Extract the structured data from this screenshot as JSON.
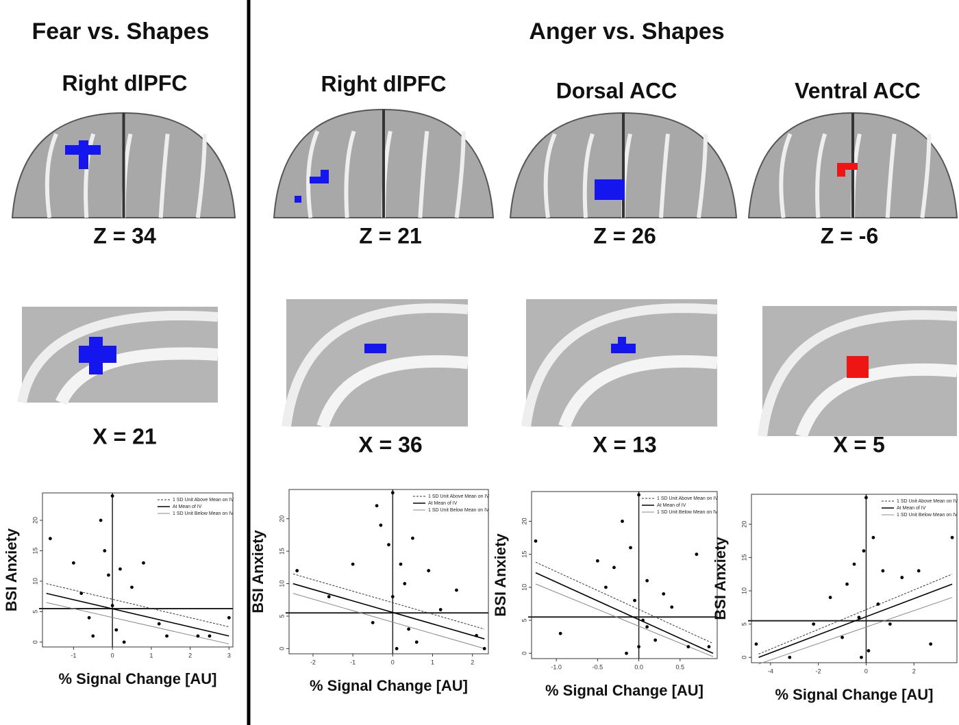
{
  "left_title": "Fear vs. Shapes",
  "right_title": "Anger vs. Shapes",
  "legend": [
    "1 SD Unit Above Mean on IV",
    "At Mean of IV",
    "1 SD Unit Below Mean on IV"
  ],
  "y_label": "BSI Anxiety",
  "x_label": "% Signal Change [AU]",
  "panels": [
    {
      "region": "Right dlPFC",
      "axial_label": "Z = 34",
      "sagittal_label": "X = 21",
      "blob_color": "#1515ee",
      "plot": {
        "xlim": [
          -1.8,
          3.1
        ],
        "ylim": [
          -0.8,
          24.5
        ],
        "xticks": [
          -1,
          0,
          1,
          2,
          3
        ],
        "yticks": [
          0,
          5,
          10,
          15,
          20
        ],
        "mean_y": 5.5,
        "mean_x": 0,
        "x": [
          -1.6,
          -1,
          -0.8,
          -0.6,
          -0.5,
          -0.3,
          -0.2,
          -0.1,
          0,
          0,
          0.1,
          0.2,
          0.3,
          0.5,
          0.8,
          1.2,
          1.4,
          2.2,
          2.5,
          3
        ],
        "y": [
          17,
          13,
          8,
          4,
          1,
          20,
          15,
          11,
          24,
          6,
          2,
          12,
          0,
          9,
          13,
          3,
          1,
          1,
          1,
          4
        ],
        "lines": [
          [
            -1.7,
            9.6,
            3,
            2.5
          ],
          [
            -1.7,
            8,
            3,
            1
          ],
          [
            -1.7,
            6.5,
            3,
            -0.3
          ]
        ]
      }
    },
    {
      "region": "Right dlPFC",
      "axial_label": "Z = 21",
      "sagittal_label": "X = 36",
      "blob_color": "#1515ee",
      "plot": {
        "xlim": [
          -2.6,
          2.4
        ],
        "ylim": [
          -0.8,
          24.5
        ],
        "xticks": [
          -2,
          -1,
          0,
          1,
          2
        ],
        "yticks": [
          0,
          5,
          10,
          15,
          20
        ],
        "mean_y": 5.5,
        "mean_x": 0,
        "x": [
          -2.4,
          -1.6,
          -1,
          -0.5,
          -0.3,
          -0.1,
          0,
          0,
          0.1,
          0.2,
          0.3,
          0.4,
          0.5,
          0.6,
          0.9,
          1.2,
          1.6,
          2.1,
          2.3,
          -0.4
        ],
        "y": [
          12,
          8,
          13,
          4,
          19,
          16,
          24,
          8,
          0,
          13,
          10,
          3,
          17,
          1,
          12,
          6,
          9,
          2,
          0,
          22
        ],
        "lines": [
          [
            -2.5,
            11.5,
            2.3,
            3
          ],
          [
            -2.5,
            10,
            2.3,
            1.5
          ],
          [
            -2.5,
            8.5,
            2.3,
            0
          ]
        ]
      }
    },
    {
      "region": "Dorsal ACC",
      "axial_label": "Z = 26",
      "sagittal_label": "X = 13",
      "blob_color": "#1515ee",
      "plot": {
        "xlim": [
          -1.3,
          0.95
        ],
        "ylim": [
          -0.8,
          24.5
        ],
        "xticks": [
          {
            "value": -1,
            "label": "-1.0"
          },
          {
            "value": -0.5,
            "label": "-0.5"
          },
          {
            "value": 0,
            "label": "0.0"
          },
          0.5
        ],
        "yticks": [
          0,
          5,
          10,
          15,
          20
        ],
        "mean_y": 5.5,
        "mean_x": 0,
        "x": [
          -1.25,
          -0.95,
          -0.5,
          -0.4,
          -0.3,
          -0.2,
          -0.1,
          -0.05,
          0,
          0,
          0.05,
          0.1,
          0.2,
          0.3,
          0.4,
          0.6,
          0.7,
          0.85,
          -0.15,
          0.1
        ],
        "y": [
          17,
          3,
          14,
          10,
          13,
          20,
          16,
          8,
          24,
          1,
          5,
          11,
          2,
          9,
          7,
          1,
          15,
          1,
          0,
          4
        ],
        "lines": [
          [
            -1.25,
            13.8,
            0.9,
            1.5
          ],
          [
            -1.25,
            12.2,
            0.9,
            0
          ],
          [
            -1.25,
            10.5,
            0.9,
            -0.5
          ]
        ]
      }
    },
    {
      "region": "Ventral ACC",
      "axial_label": "Z = -6",
      "sagittal_label": "X = 5",
      "blob_color": "#ee1515",
      "plot": {
        "xlim": [
          -4.8,
          3.8
        ],
        "ylim": [
          -0.8,
          24.5
        ],
        "xticks": [
          -4,
          -2,
          0,
          2
        ],
        "yticks": [
          0,
          5,
          10,
          15,
          20
        ],
        "mean_y": 5.5,
        "mean_x": 0,
        "x": [
          -4.6,
          -3.2,
          -2.2,
          -1.5,
          -1,
          -0.8,
          -0.5,
          -0.3,
          -0.1,
          0,
          0.1,
          0.3,
          0.5,
          0.7,
          1,
          1.5,
          2.2,
          2.7,
          3.6,
          -0.2
        ],
        "y": [
          2,
          0,
          5,
          9,
          3,
          11,
          14,
          6,
          16,
          24,
          1,
          18,
          8,
          13,
          5,
          12,
          13,
          2,
          18,
          0
        ],
        "lines": [
          [
            -4.5,
            0.5,
            3.6,
            12.5
          ],
          [
            -4.5,
            0,
            3.6,
            11
          ],
          [
            -4.5,
            -1,
            3.6,
            9
          ]
        ]
      }
    }
  ]
}
